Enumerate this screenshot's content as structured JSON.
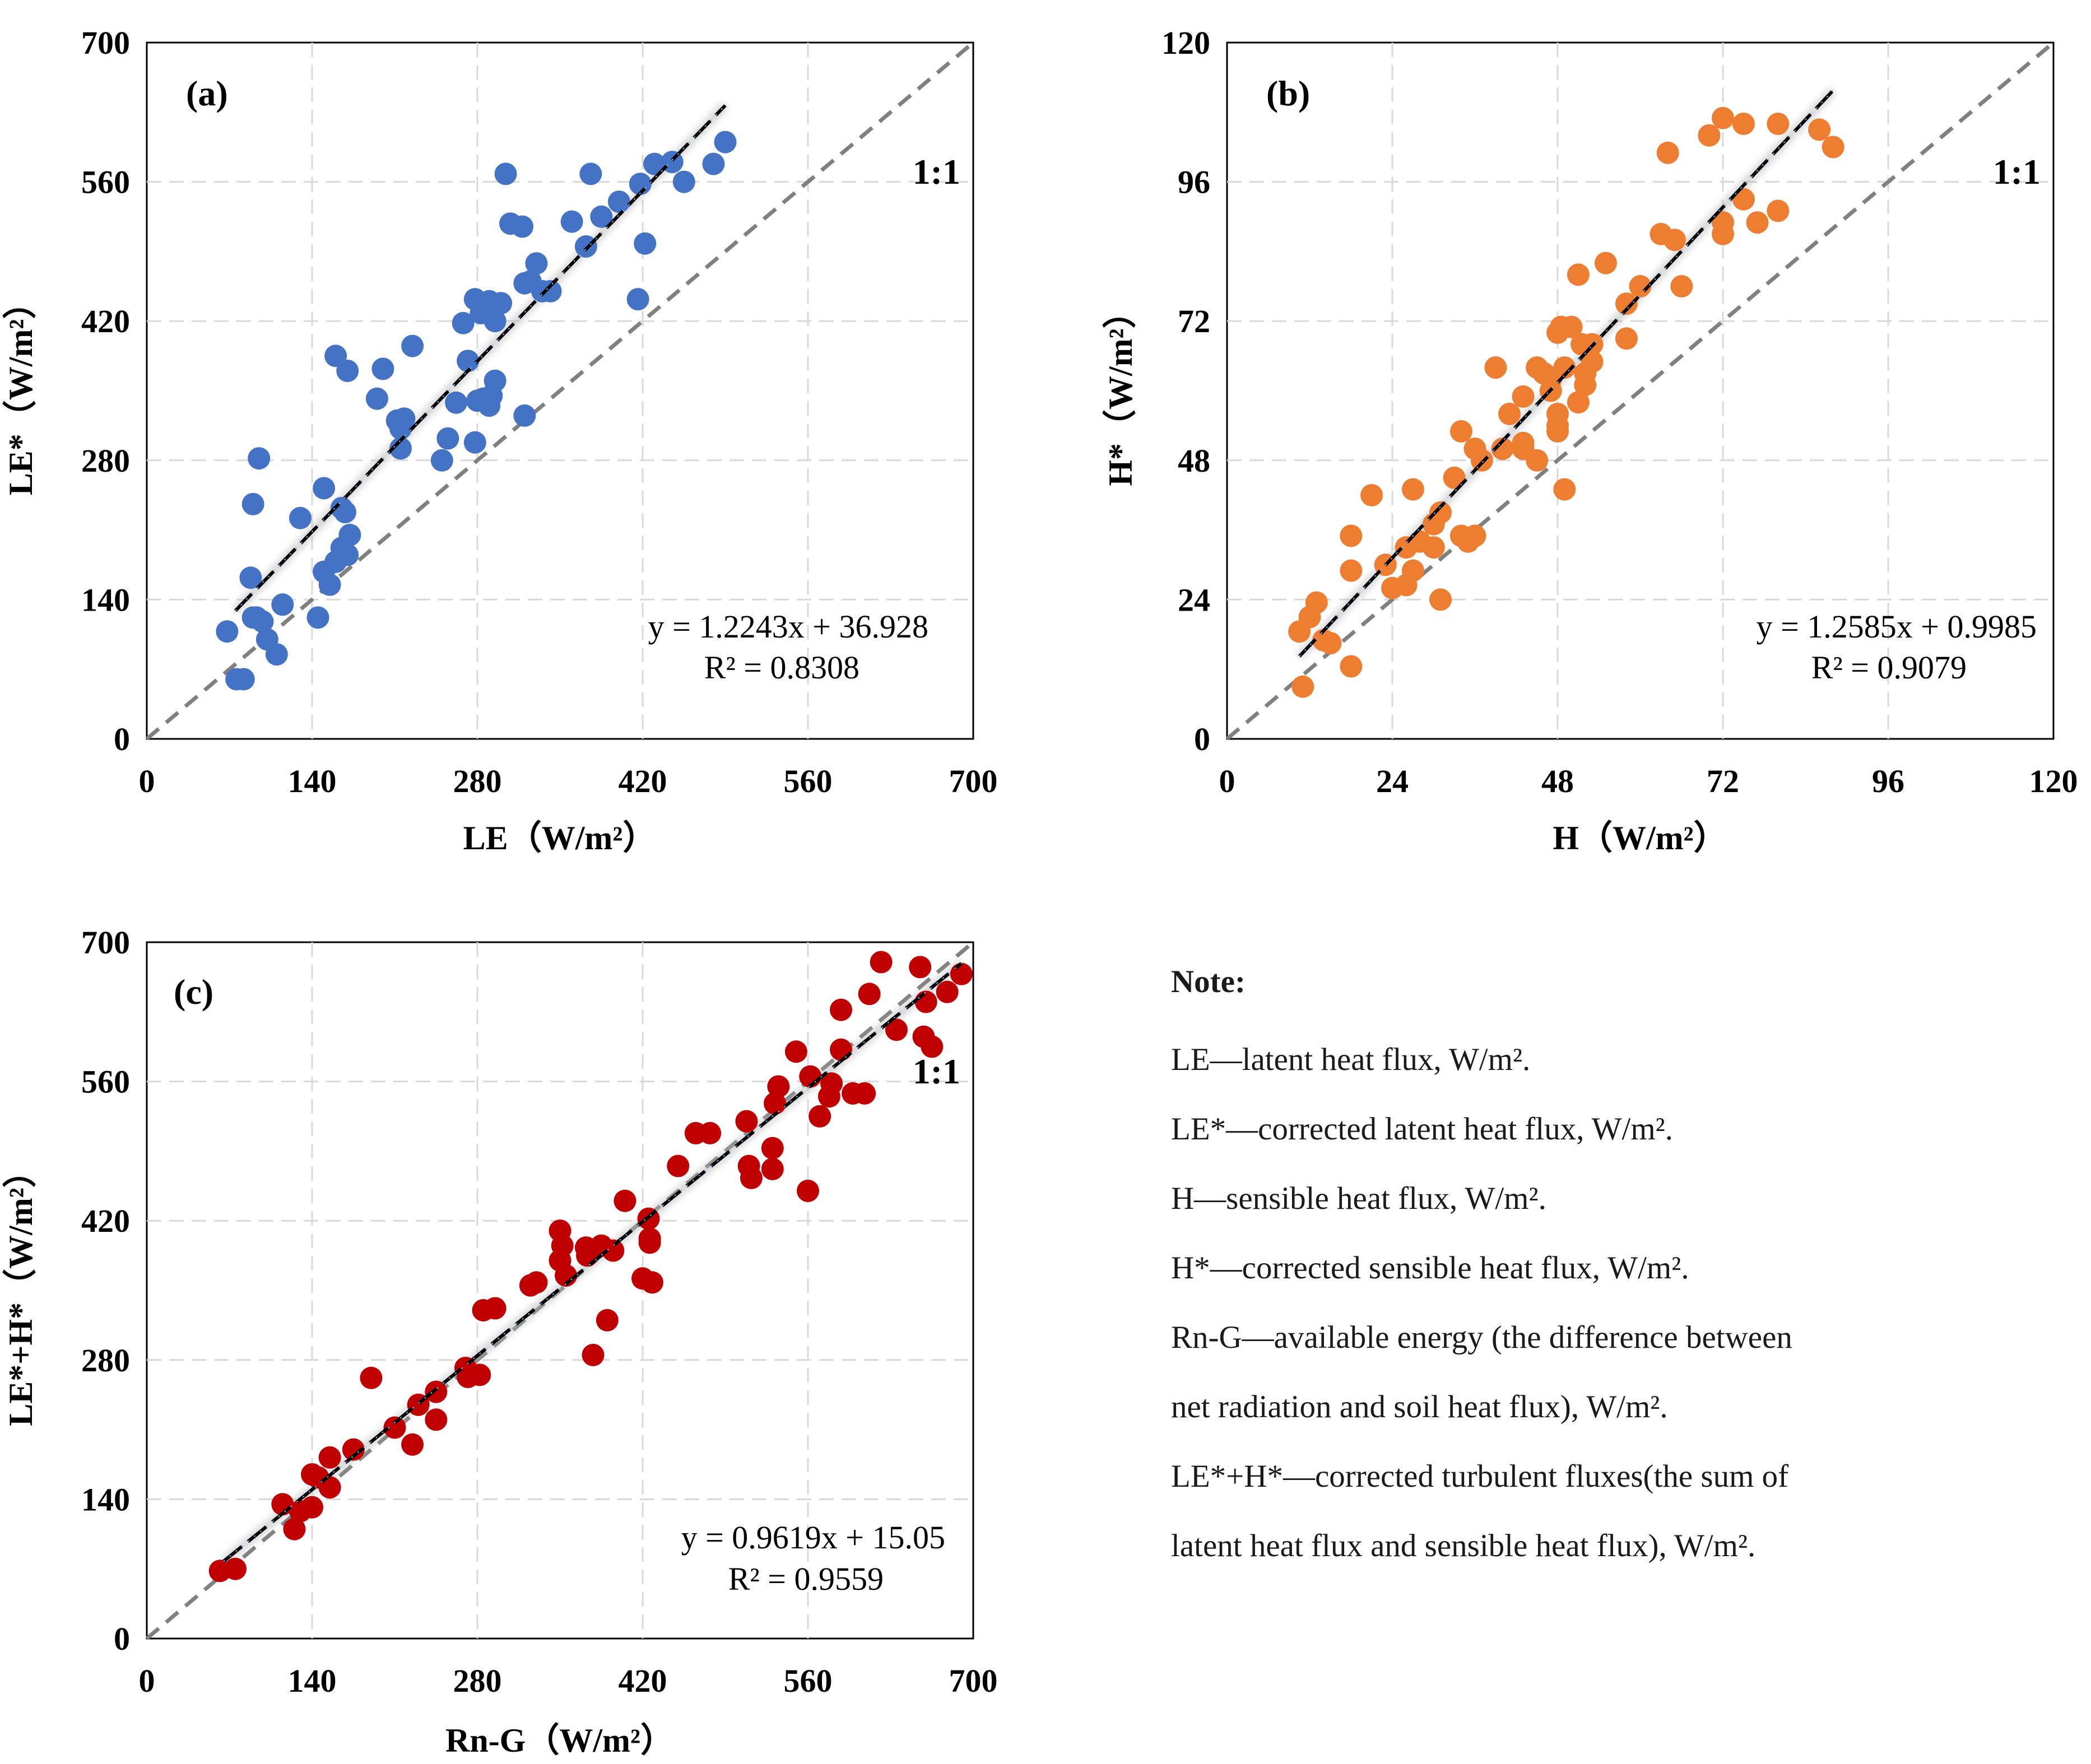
{
  "charts": [
    {
      "panel": "(a)",
      "one_to_one": "1:1",
      "xlabel": "LE（W/m²）",
      "ylabel": "LE*（W/m²）",
      "ticks": [
        "0",
        "140",
        "280",
        "420",
        "560",
        "700"
      ],
      "equation": "y = 1.2243x + 36.928",
      "r2": "R² = 0.8308",
      "color": "#4472c4"
    },
    {
      "panel": "(b)",
      "one_to_one": "1:1",
      "xlabel": "H（W/m²）",
      "ylabel": "H*（W/m²）",
      "ticks": [
        "0",
        "24",
        "48",
        "72",
        "96",
        "120"
      ],
      "equation": "y = 1.2585x + 0.9985",
      "r2": "R² = 0.9079",
      "color": "#ed7d31"
    },
    {
      "panel": "(c)",
      "one_to_one": "1:1",
      "xlabel": "Rn-G（W/m²）",
      "ylabel": "LE*+H*（W/m²）",
      "ticks": [
        "0",
        "140",
        "280",
        "420",
        "560",
        "700"
      ],
      "equation": "y = 0.9619x + 15.05",
      "r2": "R² = 0.9559",
      "color": "#c00000"
    }
  ],
  "note": {
    "title": "Note:",
    "lines": [
      "LE—latent heat flux, W/m².",
      "LE*—corrected latent heat flux, W/m².",
      "H—sensible heat flux, W/m².",
      "H*—corrected sensible heat flux, W/m².",
      "Rn-G—available energy (the difference between",
      "net radiation and soil heat flux), W/m².",
      "LE*+H*—corrected turbulent fluxes(the sum of",
      "latent heat flux and sensible heat flux), W/m²."
    ]
  },
  "chart_data": [
    {
      "type": "scatter",
      "title": "(a)",
      "xlabel": "LE（W/m²）",
      "ylabel": "LE*（W/m²）",
      "xlim": [
        0,
        700
      ],
      "ylim": [
        0,
        700
      ],
      "fit": {
        "slope": 1.2243,
        "intercept": 36.928,
        "x_range": [
          75,
          490
        ]
      },
      "reference_line": "1:1",
      "color": "#4472c4",
      "points": [
        [
          68,
          108
        ],
        [
          76,
          60
        ],
        [
          82,
          60
        ],
        [
          90,
          122
        ],
        [
          93,
          122
        ],
        [
          98,
          118
        ],
        [
          102,
          100
        ],
        [
          110,
          85
        ],
        [
          115,
          135
        ],
        [
          90,
          236
        ],
        [
          95,
          282
        ],
        [
          88,
          162
        ],
        [
          130,
          222
        ],
        [
          150,
          252
        ],
        [
          168,
          228
        ],
        [
          165,
          232
        ],
        [
          145,
          122
        ],
        [
          150,
          168
        ],
        [
          155,
          155
        ],
        [
          160,
          178
        ],
        [
          165,
          192
        ],
        [
          170,
          185
        ],
        [
          172,
          205
        ],
        [
          160,
          385
        ],
        [
          170,
          370
        ],
        [
          195,
          342
        ],
        [
          200,
          372
        ],
        [
          212,
          320
        ],
        [
          215,
          312
        ],
        [
          215,
          292
        ],
        [
          218,
          322
        ],
        [
          225,
          395
        ],
        [
          250,
          280
        ],
        [
          255,
          302
        ],
        [
          262,
          338
        ],
        [
          278,
          298
        ],
        [
          280,
          340
        ],
        [
          285,
          342
        ],
        [
          290,
          335
        ],
        [
          292,
          345
        ],
        [
          295,
          360
        ],
        [
          268,
          418
        ],
        [
          272,
          380
        ],
        [
          278,
          442
        ],
        [
          283,
          428
        ],
        [
          290,
          440
        ],
        [
          295,
          420
        ],
        [
          300,
          438
        ],
        [
          304,
          568
        ],
        [
          308,
          518
        ],
        [
          318,
          515
        ],
        [
          320,
          325
        ],
        [
          320,
          458
        ],
        [
          325,
          460
        ],
        [
          330,
          478
        ],
        [
          335,
          450
        ],
        [
          342,
          450
        ],
        [
          360,
          520
        ],
        [
          372,
          495
        ],
        [
          376,
          568
        ],
        [
          385,
          525
        ],
        [
          400,
          540
        ],
        [
          416,
          442
        ],
        [
          418,
          558
        ],
        [
          422,
          498
        ],
        [
          430,
          578
        ],
        [
          445,
          580
        ],
        [
          455,
          560
        ],
        [
          480,
          578
        ],
        [
          490,
          600
        ]
      ]
    },
    {
      "type": "scatter",
      "title": "(b)",
      "xlabel": "H（W/m²）",
      "ylabel": "H*（W/m²）",
      "xlim": [
        0,
        120
      ],
      "ylim": [
        0,
        120
      ],
      "fit": {
        "slope": 1.2585,
        "intercept": 0.9985,
        "x_range": [
          10.5,
          88
        ]
      },
      "reference_line": "1:1",
      "color": "#ed7d31",
      "points": [
        [
          10.5,
          18.5
        ],
        [
          11,
          9
        ],
        [
          12,
          21
        ],
        [
          13,
          23.5
        ],
        [
          14,
          17
        ],
        [
          15,
          16.5
        ],
        [
          18,
          12.5
        ],
        [
          18,
          35
        ],
        [
          18,
          29
        ],
        [
          21,
          42
        ],
        [
          23,
          30
        ],
        [
          24,
          26
        ],
        [
          26,
          33
        ],
        [
          26,
          26.5
        ],
        [
          27,
          43
        ],
        [
          27,
          29
        ],
        [
          28,
          34
        ],
        [
          30,
          37
        ],
        [
          30,
          33
        ],
        [
          31,
          24
        ],
        [
          31,
          39
        ],
        [
          33,
          45
        ],
        [
          34,
          53
        ],
        [
          34,
          35
        ],
        [
          35,
          34
        ],
        [
          36,
          35
        ],
        [
          36,
          50
        ],
        [
          37,
          48
        ],
        [
          39,
          64
        ],
        [
          40,
          50
        ],
        [
          41,
          56
        ],
        [
          43,
          59
        ],
        [
          43,
          51
        ],
        [
          43,
          50
        ],
        [
          45,
          48
        ],
        [
          45,
          64
        ],
        [
          46,
          63
        ],
        [
          47,
          60
        ],
        [
          47,
          62
        ],
        [
          48,
          53
        ],
        [
          48,
          54
        ],
        [
          48,
          56
        ],
        [
          48,
          70
        ],
        [
          48.5,
          71
        ],
        [
          49,
          64
        ],
        [
          49,
          43
        ],
        [
          50,
          71
        ],
        [
          51,
          58
        ],
        [
          51,
          80
        ],
        [
          51.5,
          68
        ],
        [
          52,
          61
        ],
        [
          52,
          63
        ],
        [
          53,
          65
        ],
        [
          53,
          68
        ],
        [
          55,
          82
        ],
        [
          58,
          69
        ],
        [
          58,
          75
        ],
        [
          60,
          78
        ],
        [
          63,
          87
        ],
        [
          64,
          101
        ],
        [
          65,
          86
        ],
        [
          66,
          78
        ],
        [
          70,
          104
        ],
        [
          72,
          89
        ],
        [
          72,
          87
        ],
        [
          72,
          107
        ],
        [
          75,
          93
        ],
        [
          75,
          106
        ],
        [
          77,
          89
        ],
        [
          80,
          91
        ],
        [
          80,
          106
        ],
        [
          86,
          105
        ],
        [
          88,
          102
        ]
      ]
    },
    {
      "type": "scatter",
      "title": "(c)",
      "xlabel": "Rn-G（W/m²）",
      "ylabel": "LE*+H*（W/m²）",
      "xlim": [
        0,
        700
      ],
      "ylim": [
        0,
        700
      ],
      "fit": {
        "slope": 0.9619,
        "intercept": 15.05,
        "x_range": [
          65,
          690
        ]
      },
      "reference_line": "1:1",
      "color": "#c00000",
      "points": [
        [
          62,
          68
        ],
        [
          75,
          70
        ],
        [
          115,
          135
        ],
        [
          125,
          110
        ],
        [
          130,
          128
        ],
        [
          140,
          132
        ],
        [
          140,
          165
        ],
        [
          145,
          162
        ],
        [
          155,
          152
        ],
        [
          155,
          182
        ],
        [
          175,
          190
        ],
        [
          190,
          262
        ],
        [
          210,
          212
        ],
        [
          225,
          195
        ],
        [
          230,
          235
        ],
        [
          245,
          248
        ],
        [
          245,
          220
        ],
        [
          270,
          272
        ],
        [
          272,
          263
        ],
        [
          282,
          265
        ],
        [
          285,
          330
        ],
        [
          295,
          332
        ],
        [
          325,
          355
        ],
        [
          330,
          358
        ],
        [
          350,
          380
        ],
        [
          350,
          410
        ],
        [
          352,
          395
        ],
        [
          355,
          365
        ],
        [
          372,
          393
        ],
        [
          373,
          385
        ],
        [
          378,
          285
        ],
        [
          385,
          395
        ],
        [
          390,
          320
        ],
        [
          395,
          390
        ],
        [
          405,
          440
        ],
        [
          420,
          362
        ],
        [
          425,
          422
        ],
        [
          426,
          398
        ],
        [
          426,
          402
        ],
        [
          428,
          358
        ],
        [
          450,
          475
        ],
        [
          465,
          508
        ],
        [
          477,
          508
        ],
        [
          508,
          520
        ],
        [
          510,
          475
        ],
        [
          512,
          463
        ],
        [
          530,
          472
        ],
        [
          530,
          493
        ],
        [
          532,
          538
        ],
        [
          535,
          555
        ],
        [
          550,
          590
        ],
        [
          560,
          450
        ],
        [
          562,
          565
        ],
        [
          570,
          525
        ],
        [
          578,
          545
        ],
        [
          580,
          558
        ],
        [
          588,
          632
        ],
        [
          588,
          592
        ],
        [
          598,
          548
        ],
        [
          608,
          548
        ],
        [
          612,
          648
        ],
        [
          622,
          680
        ],
        [
          635,
          612
        ],
        [
          655,
          675
        ],
        [
          658,
          605
        ],
        [
          660,
          640
        ],
        [
          665,
          595
        ],
        [
          678,
          650
        ],
        [
          690,
          668
        ]
      ]
    }
  ]
}
